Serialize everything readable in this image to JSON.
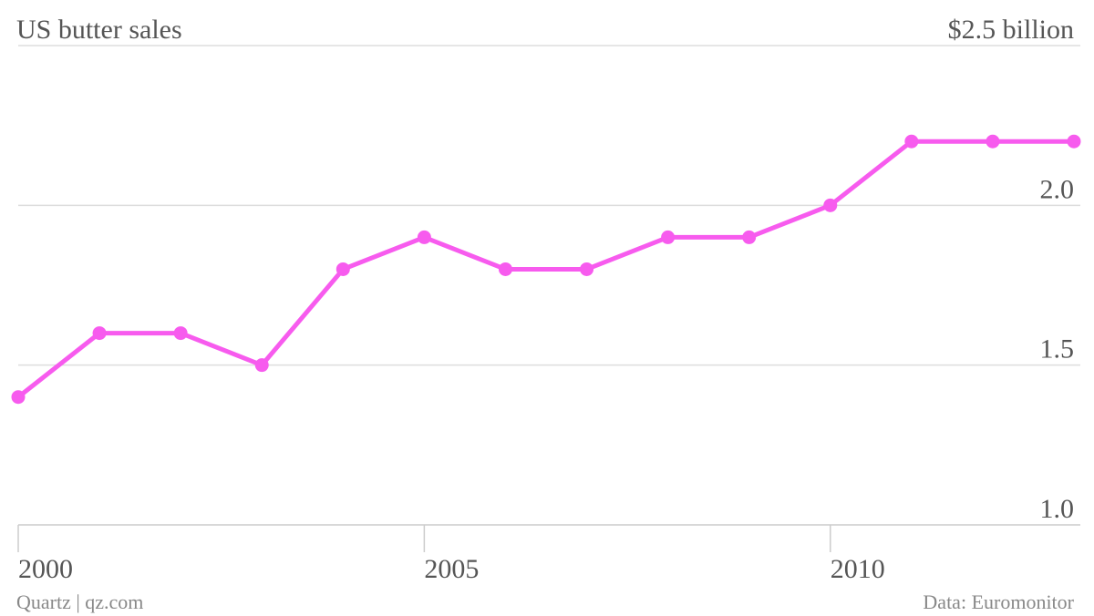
{
  "chart_data": {
    "type": "line",
    "title": "US butter sales",
    "x": [
      2000,
      2001,
      2002,
      2003,
      2004,
      2005,
      2006,
      2007,
      2008,
      2009,
      2010,
      2011,
      2012,
      2013
    ],
    "series": [
      {
        "name": "US butter sales",
        "color": "#f75bee",
        "values": [
          1.4,
          1.6,
          1.6,
          1.5,
          1.8,
          1.9,
          1.8,
          1.8,
          1.9,
          1.9,
          2.0,
          2.2,
          2.2,
          2.2
        ]
      }
    ],
    "xlim": [
      2000,
      2013
    ],
    "xticks": [
      2000,
      2005,
      2010
    ],
    "ylim": [
      1,
      2.5
    ],
    "yticks": [
      {
        "value": 1,
        "label": "1.0"
      },
      1.5,
      {
        "value": 2,
        "label": "2.0"
      },
      {
        "value": 2.5,
        "label": "$2.5 billion"
      }
    ],
    "grid": true,
    "source": "Data: Euromonitor",
    "credit": "Quartz | qz.com"
  }
}
